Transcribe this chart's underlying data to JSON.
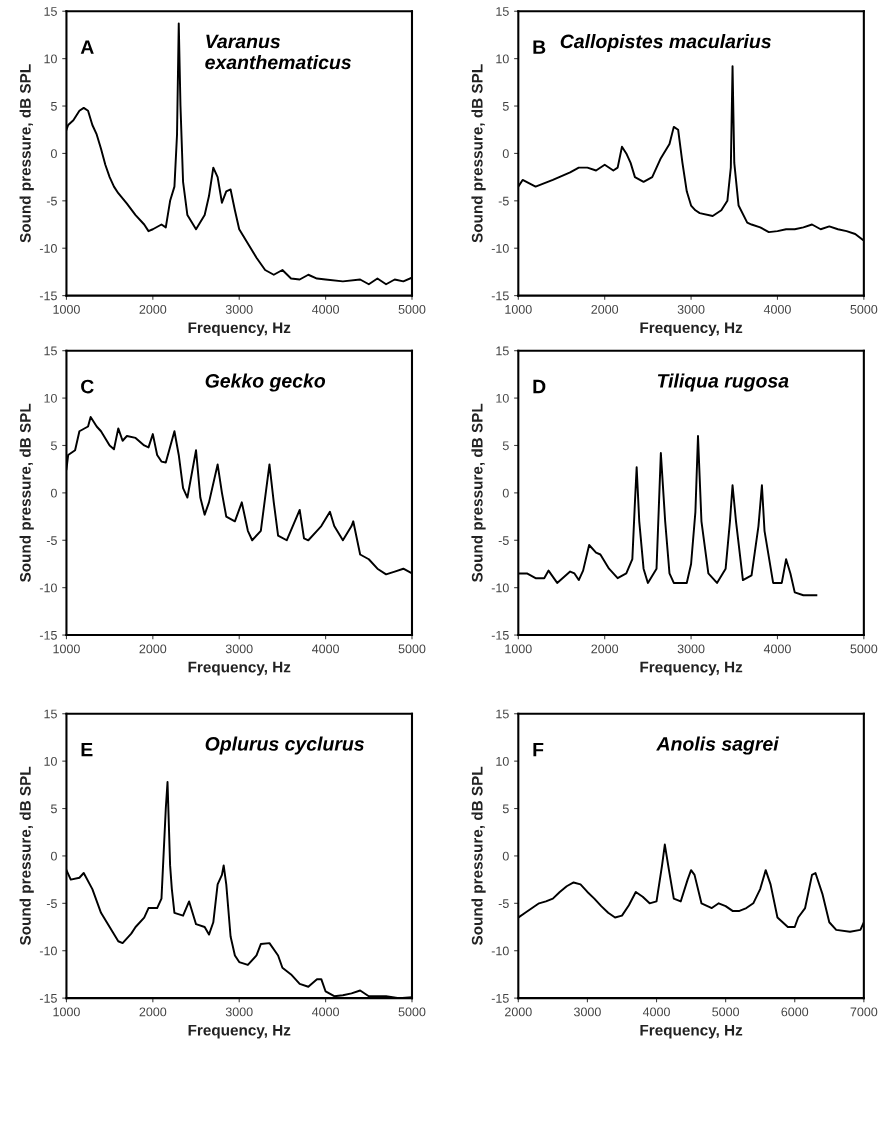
{
  "chart_data": [
    {
      "type": "line",
      "xlabel": "Frequency, Hz",
      "ylabel": "Sound pressure, dB SPL",
      "annotations": [
        "A",
        "Varanus\nexanthematicus"
      ],
      "xlim": [
        1000,
        5000
      ],
      "ylim": [
        -15,
        15
      ],
      "xticks": [
        1000,
        2000,
        3000,
        4000,
        5000
      ],
      "yticks": [
        -15,
        -10,
        -5,
        0,
        5,
        10,
        15
      ],
      "grid": false,
      "legend": false,
      "series": [
        {
          "color": "#000000",
          "x": [
            1000,
            1020,
            1080,
            1150,
            1200,
            1250,
            1300,
            1350,
            1400,
            1450,
            1500,
            1550,
            1600,
            1700,
            1800,
            1900,
            1950,
            2000,
            2100,
            2150,
            2200,
            2250,
            2280,
            2300,
            2320,
            2350,
            2400,
            2500,
            2600,
            2650,
            2700,
            2750,
            2800,
            2850,
            2900,
            2950,
            3000,
            3100,
            3200,
            3300,
            3400,
            3500,
            3600,
            3700,
            3800,
            3900,
            4000,
            4200,
            4400,
            4500,
            4600,
            4700,
            4800,
            4900,
            5000
          ],
          "values": [
            2.5,
            3,
            3.5,
            4.5,
            4.8,
            4.5,
            3,
            2,
            0.5,
            -1.2,
            -2.5,
            -3.5,
            -4.2,
            -5.3,
            -6.5,
            -7.5,
            -8.2,
            -8,
            -7.5,
            -7.8,
            -5,
            -3.5,
            2,
            13.7,
            5,
            -3,
            -6.5,
            -8,
            -6.5,
            -4.5,
            -1.5,
            -2.5,
            -5.2,
            -4,
            -3.8,
            -6,
            -8,
            -9.5,
            -11,
            -12.3,
            -12.8,
            -12.3,
            -13.2,
            -13.3,
            -12.8,
            -13.2,
            -13.3,
            -13.5,
            -13.3,
            -13.8,
            -13.2,
            -13.8,
            -13.3,
            -13.5,
            -13.1
          ]
        }
      ]
    },
    {
      "type": "line",
      "xlabel": "Frequency, Hz",
      "ylabel": "Sound pressure, dB SPL",
      "annotations": [
        "B",
        "Callopistes macularius"
      ],
      "xlim": [
        1000,
        5000
      ],
      "ylim": [
        -15,
        15
      ],
      "xticks": [
        1000,
        2000,
        3000,
        4000,
        5000
      ],
      "yticks": [
        -15,
        -10,
        -5,
        0,
        5,
        10,
        15
      ],
      "grid": false,
      "legend": false,
      "series": [
        {
          "color": "#000000",
          "x": [
            1000,
            1050,
            1200,
            1400,
            1600,
            1700,
            1800,
            1900,
            2000,
            2100,
            2150,
            2200,
            2250,
            2300,
            2350,
            2450,
            2550,
            2650,
            2750,
            2800,
            2850,
            2900,
            2950,
            3000,
            3050,
            3100,
            3250,
            3350,
            3420,
            3460,
            3480,
            3500,
            3550,
            3650,
            3700,
            3800,
            3900,
            4000,
            4100,
            4200,
            4300,
            4400,
            4500,
            4600,
            4700,
            4800,
            4900,
            5000
          ],
          "values": [
            -3.5,
            -2.8,
            -3.5,
            -2.8,
            -2,
            -1.5,
            -1.5,
            -1.8,
            -1.2,
            -1.8,
            -1.5,
            0.7,
            0,
            -1,
            -2.5,
            -3,
            -2.5,
            -0.5,
            1,
            2.8,
            2.5,
            -1,
            -4,
            -5.5,
            -6,
            -6.3,
            -6.6,
            -6,
            -5,
            -1.5,
            9.2,
            -1,
            -5.5,
            -7.3,
            -7.5,
            -7.8,
            -8.3,
            -8.2,
            -8,
            -8,
            -7.8,
            -7.5,
            -8,
            -7.7,
            -8,
            -8.2,
            -8.5,
            -9.2
          ]
        }
      ]
    },
    {
      "type": "line",
      "xlabel": "Frequency, Hz",
      "ylabel": "Sound pressure, dB SPL",
      "annotations": [
        "C",
        "Gekko gecko"
      ],
      "xlim": [
        1000,
        5000
      ],
      "ylim": [
        -15,
        15
      ],
      "xticks": [
        1000,
        2000,
        3000,
        4000,
        5000
      ],
      "yticks": [
        -15,
        -10,
        -5,
        0,
        5,
        10,
        15
      ],
      "grid": false,
      "legend": false,
      "series": [
        {
          "color": "#000000",
          "x": [
            1000,
            1020,
            1100,
            1150,
            1250,
            1280,
            1350,
            1400,
            1500,
            1550,
            1600,
            1650,
            1700,
            1800,
            1900,
            1950,
            2000,
            2050,
            2100,
            2150,
            2250,
            2300,
            2350,
            2400,
            2500,
            2550,
            2600,
            2650,
            2750,
            2800,
            2850,
            2950,
            3030,
            3100,
            3150,
            3250,
            3350,
            3400,
            3450,
            3550,
            3700,
            3750,
            3800,
            3900,
            3950,
            4050,
            4100,
            4200,
            4300,
            4320,
            4400,
            4500,
            4600,
            4700,
            4800,
            4900,
            5000
          ],
          "values": [
            2.5,
            4,
            4.5,
            6.5,
            7,
            8,
            7,
            6.5,
            5,
            4.6,
            6.8,
            5.5,
            6,
            5.8,
            5,
            4.8,
            6.2,
            4,
            3.3,
            3.2,
            6.5,
            4,
            0.5,
            -0.5,
            4.5,
            -0.5,
            -2.3,
            -1,
            3,
            0,
            -2.5,
            -3,
            -1,
            -4,
            -5,
            -4,
            3,
            -1,
            -4.5,
            -5,
            -1.8,
            -4.8,
            -5,
            -4,
            -3.5,
            -2,
            -3.5,
            -5,
            -3.5,
            -3,
            -6.5,
            -7,
            -8,
            -8.6,
            -8.3,
            -8,
            -8.5
          ]
        }
      ]
    },
    {
      "type": "line",
      "xlabel": "Frequency, Hz",
      "ylabel": "Sound pressure, dB SPL",
      "annotations": [
        "D",
        "Tiliqua rugosa"
      ],
      "xlim": [
        1000,
        5000
      ],
      "ylim": [
        -15,
        15
      ],
      "xticks": [
        1000,
        2000,
        3000,
        4000,
        5000
      ],
      "yticks": [
        -15,
        -10,
        -5,
        0,
        5,
        10,
        15
      ],
      "grid": false,
      "legend": false,
      "series": [
        {
          "color": "#000000",
          "x": [
            1000,
            1100,
            1200,
            1300,
            1350,
            1450,
            1600,
            1650,
            1700,
            1750,
            1820,
            1900,
            1950,
            2050,
            2150,
            2250,
            2320,
            2350,
            2370,
            2400,
            2450,
            2500,
            2600,
            2650,
            2700,
            2750,
            2800,
            2950,
            3000,
            3050,
            3080,
            3120,
            3200,
            3300,
            3400,
            3450,
            3480,
            3520,
            3600,
            3700,
            3780,
            3820,
            3850,
            3950,
            4050,
            4100,
            4150,
            4200,
            4300,
            4450
          ],
          "values": [
            -8.5,
            -8.5,
            -9,
            -9,
            -8.2,
            -9.5,
            -8.3,
            -8.5,
            -9.2,
            -8.2,
            -5.5,
            -6.3,
            -6.5,
            -8,
            -9,
            -8.5,
            -7,
            -1,
            2.7,
            -3,
            -8,
            -9.5,
            -8,
            4.2,
            -3,
            -8.5,
            -9.5,
            -9.5,
            -7.5,
            -2,
            6,
            -3,
            -8.5,
            -9.5,
            -8,
            -3,
            0.8,
            -3,
            -9.2,
            -8.7,
            -3.5,
            0.8,
            -4,
            -9.5,
            -9.5,
            -7,
            -8.5,
            -10.5,
            -10.8,
            -10.8
          ]
        }
      ]
    },
    {
      "type": "line",
      "xlabel": "Frequency, Hz",
      "ylabel": "Sound pressure, dB SPL",
      "annotations": [
        "E",
        "Oplurus cyclurus"
      ],
      "xlim": [
        1000,
        5000
      ],
      "ylim": [
        -15,
        15
      ],
      "xticks": [
        1000,
        2000,
        3000,
        4000,
        5000
      ],
      "yticks": [
        -15,
        -10,
        -5,
        0,
        5,
        10,
        15
      ],
      "grid": false,
      "legend": false,
      "series": [
        {
          "color": "#000000",
          "x": [
            1000,
            1050,
            1150,
            1200,
            1300,
            1400,
            1500,
            1600,
            1650,
            1750,
            1800,
            1900,
            1950,
            2050,
            2100,
            2150,
            2170,
            2200,
            2220,
            2250,
            2350,
            2420,
            2500,
            2600,
            2650,
            2700,
            2750,
            2800,
            2820,
            2850,
            2900,
            2950,
            3000,
            3100,
            3200,
            3250,
            3350,
            3450,
            3500,
            3600,
            3700,
            3800,
            3900,
            3950,
            4000,
            4100,
            4200,
            4300,
            4400,
            4500,
            4700,
            4850,
            5000
          ],
          "values": [
            -1.5,
            -2.5,
            -2.3,
            -1.8,
            -3.5,
            -6,
            -7.5,
            -9,
            -9.2,
            -8.2,
            -7.5,
            -6.5,
            -5.5,
            -5.5,
            -4.5,
            5,
            7.8,
            -1,
            -3.5,
            -6,
            -6.3,
            -4.8,
            -7.2,
            -7.5,
            -8.3,
            -7,
            -3,
            -2,
            -1,
            -3,
            -8.5,
            -10.5,
            -11.2,
            -11.5,
            -10.5,
            -9.3,
            -9.2,
            -10.5,
            -11.8,
            -12.5,
            -13.5,
            -13.8,
            -13,
            -13,
            -14.3,
            -14.8,
            -14.7,
            -14.5,
            -14.2,
            -14.8,
            -14.8,
            -15,
            -14.9
          ]
        }
      ]
    },
    {
      "type": "line",
      "xlabel": "Frequency, Hz",
      "ylabel": "Sound pressure, dB SPL",
      "annotations": [
        "F",
        "Anolis sagrei"
      ],
      "xlim": [
        2000,
        7000
      ],
      "ylim": [
        -15,
        15
      ],
      "xticks": [
        2000,
        3000,
        4000,
        5000,
        6000,
        7000
      ],
      "yticks": [
        -15,
        -10,
        -5,
        0,
        5,
        10,
        15
      ],
      "grid": false,
      "legend": false,
      "series": [
        {
          "color": "#000000",
          "x": [
            2000,
            2100,
            2200,
            2300,
            2400,
            2500,
            2600,
            2700,
            2800,
            2900,
            3000,
            3100,
            3200,
            3300,
            3400,
            3500,
            3600,
            3700,
            3800,
            3900,
            4000,
            4080,
            4120,
            4180,
            4250,
            4350,
            4450,
            4500,
            4550,
            4650,
            4800,
            4900,
            5000,
            5100,
            5200,
            5300,
            5400,
            5500,
            5580,
            5650,
            5750,
            5900,
            6000,
            6050,
            6150,
            6250,
            6300,
            6400,
            6500,
            6600,
            6800,
            6950,
            7000
          ],
          "values": [
            -6.5,
            -6,
            -5.5,
            -5,
            -4.8,
            -4.5,
            -3.8,
            -3.2,
            -2.8,
            -3,
            -3.8,
            -4.5,
            -5.3,
            -6,
            -6.5,
            -6.3,
            -5.2,
            -3.8,
            -4.3,
            -5,
            -4.8,
            -1,
            1.2,
            -1.5,
            -4.5,
            -4.8,
            -2.5,
            -1.5,
            -2,
            -5,
            -5.5,
            -5,
            -5.3,
            -5.8,
            -5.8,
            -5.5,
            -5,
            -3.5,
            -1.5,
            -3,
            -6.5,
            -7.5,
            -7.5,
            -6.5,
            -5.5,
            -2,
            -1.8,
            -4,
            -7,
            -7.8,
            -8,
            -7.8,
            -7
          ]
        }
      ]
    }
  ]
}
